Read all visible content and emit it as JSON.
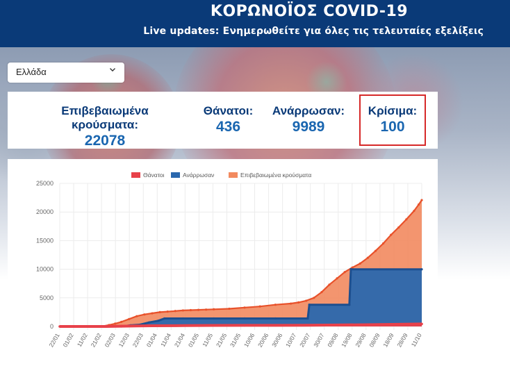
{
  "header": {
    "title": "ΚΟΡΩΝΟΪΟΣ COVID-19",
    "subtitle": "Live updates: Ενημερωθείτε για όλες τις τελευταίες εξελίξεις"
  },
  "country_select": {
    "value": "Ελλάδα"
  },
  "stats": {
    "confirmed": {
      "label": "Επιβεβαιωμένα κρούσματα:",
      "value": "22078"
    },
    "deaths": {
      "label": "Θάνατοι:",
      "value": "436"
    },
    "recovered": {
      "label": "Ανάρρωσαν:",
      "value": "9989"
    },
    "critical": {
      "label": "Κρίσιμα:",
      "value": "100"
    }
  },
  "colors": {
    "header_bg": "#0a3a78",
    "deaths": "#e8414a",
    "recovered": "#2a67ad",
    "confirmed": "#f28a5f",
    "confirmed_line": "#e8512a",
    "critical_border": "#d62828"
  },
  "chart_data": {
    "type": "area",
    "title": "",
    "xlabel": "",
    "ylabel": "",
    "ylim": [
      0,
      25000
    ],
    "yticks": [
      0,
      5000,
      10000,
      15000,
      20000,
      25000
    ],
    "tick_labels": [
      "22/01",
      "01/02",
      "11/02",
      "21/02",
      "02/03",
      "12/03",
      "22/03",
      "01/04",
      "11/04",
      "21/04",
      "01/05",
      "11/05",
      "21/05",
      "31/05",
      "10/06",
      "20/06",
      "30/06",
      "10/07",
      "20/07",
      "30/07",
      "09/08",
      "19/08",
      "29/08",
      "08/09",
      "18/09",
      "28/09",
      "11/10"
    ],
    "legend": {
      "position": "top",
      "entries": [
        "Θάνατοι",
        "Ανάρρωσαν",
        "Επιβεβαιωμένα κρούσματα"
      ]
    },
    "series": [
      {
        "name": "Επιβεβαιωμένα κρούσματα",
        "points": [
          [
            0,
            0
          ],
          [
            26,
            0
          ],
          [
            28,
            50
          ],
          [
            32,
            250
          ],
          [
            36,
            500
          ],
          [
            40,
            800
          ],
          [
            45,
            1300
          ],
          [
            50,
            1800
          ],
          [
            55,
            2100
          ],
          [
            60,
            2300
          ],
          [
            65,
            2500
          ],
          [
            70,
            2600
          ],
          [
            75,
            2700
          ],
          [
            80,
            2800
          ],
          [
            85,
            2850
          ],
          [
            90,
            2900
          ],
          [
            95,
            2950
          ],
          [
            100,
            3000
          ],
          [
            110,
            3100
          ],
          [
            120,
            3300
          ],
          [
            130,
            3500
          ],
          [
            140,
            3800
          ],
          [
            150,
            4000
          ],
          [
            155,
            4200
          ],
          [
            160,
            4500
          ],
          [
            165,
            5000
          ],
          [
            170,
            6000
          ],
          [
            175,
            7300
          ],
          [
            180,
            8400
          ],
          [
            185,
            9500
          ],
          [
            190,
            10300
          ],
          [
            195,
            11000
          ],
          [
            200,
            12000
          ],
          [
            205,
            13200
          ],
          [
            210,
            14500
          ],
          [
            215,
            16000
          ],
          [
            220,
            17300
          ],
          [
            225,
            18700
          ],
          [
            230,
            20200
          ],
          [
            233,
            21300
          ],
          [
            235,
            22078
          ]
        ]
      },
      {
        "name": "Ανάρρωσαν",
        "points": [
          [
            0,
            0
          ],
          [
            26,
            0
          ],
          [
            40,
            0
          ],
          [
            46,
            200
          ],
          [
            52,
            300
          ],
          [
            58,
            700
          ],
          [
            64,
            1000
          ],
          [
            68,
            1400
          ],
          [
            80,
            1400
          ],
          [
            100,
            1400
          ],
          [
            120,
            1400
          ],
          [
            140,
            1400
          ],
          [
            161,
            1400
          ],
          [
            162,
            3800
          ],
          [
            188,
            3800
          ],
          [
            189,
            9989
          ],
          [
            235,
            9989
          ]
        ]
      },
      {
        "name": "Θάνατοι",
        "points": [
          [
            0,
            0
          ],
          [
            26,
            0
          ],
          [
            30,
            5
          ],
          [
            40,
            50
          ],
          [
            50,
            100
          ],
          [
            60,
            120
          ],
          [
            80,
            150
          ],
          [
            100,
            180
          ],
          [
            120,
            190
          ],
          [
            140,
            200
          ],
          [
            160,
            220
          ],
          [
            180,
            260
          ],
          [
            200,
            300
          ],
          [
            220,
            380
          ],
          [
            235,
            436
          ]
        ]
      }
    ]
  }
}
